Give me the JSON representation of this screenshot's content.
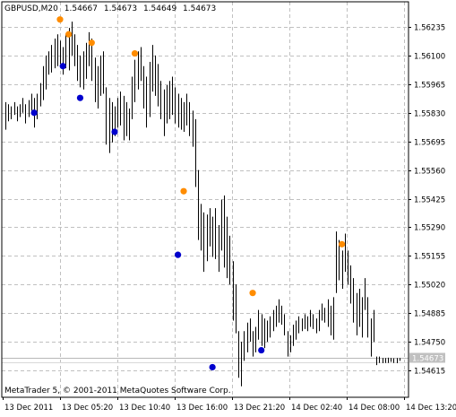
{
  "header": {
    "symbol_timeframe": "GBPUSD,M20",
    "open": "1.54667",
    "high": "1.54673",
    "low": "1.54649",
    "close": "1.54673"
  },
  "footer": {
    "copyright": "MetaTrader 5, © 2001-2011 MetaQuotes Software Corp."
  },
  "colors": {
    "bars": "#000000",
    "grid": "#c0c0c0",
    "up_fractal": "#ff8c00",
    "down_fractal": "#0000cd",
    "current_price_bg": "#c0c0c0"
  },
  "chart_data": {
    "type": "ohlc",
    "title": "GBPUSD,M20",
    "price_axis": {
      "position": "right",
      "min": 1.5454,
      "max": 1.563,
      "ticks": [
        "1.56235",
        "1.56100",
        "1.55965",
        "1.55830",
        "1.55695",
        "1.55560",
        "1.55425",
        "1.55290",
        "1.55155",
        "1.55020",
        "1.54885",
        "1.54750",
        "1.54615"
      ],
      "current_price": "1.54673"
    },
    "time_axis": {
      "ticks": [
        "13 Dec 2011",
        "13 Dec 05:20",
        "13 Dec 10:40",
        "13 Dec 16:00",
        "13 Dec 21:20",
        "14 Dec 02:40",
        "14 Dec 08:00",
        "14 Dec 13:20"
      ]
    },
    "grid": true,
    "bar_count": 138,
    "bars": [
      {
        "h": 1.5588,
        "l": 1.5575
      },
      {
        "h": 1.5587,
        "l": 1.5579
      },
      {
        "h": 1.5586,
        "l": 1.558
      },
      {
        "h": 1.5588,
        "l": 1.5582
      },
      {
        "h": 1.5586,
        "l": 1.5579
      },
      {
        "h": 1.5587,
        "l": 1.5581
      },
      {
        "h": 1.559,
        "l": 1.5583
      },
      {
        "h": 1.5587,
        "l": 1.5578
      },
      {
        "h": 1.5589,
        "l": 1.5581
      },
      {
        "h": 1.5592,
        "l": 1.5584
      },
      {
        "h": 1.559,
        "l": 1.5576
      },
      {
        "h": 1.5592,
        "l": 1.558
      },
      {
        "h": 1.5597,
        "l": 1.5586
      },
      {
        "h": 1.5605,
        "l": 1.5589
      },
      {
        "h": 1.561,
        "l": 1.5594
      },
      {
        "h": 1.5612,
        "l": 1.5601
      },
      {
        "h": 1.5615,
        "l": 1.5602
      },
      {
        "h": 1.5618,
        "l": 1.5604
      },
      {
        "h": 1.562,
        "l": 1.5605
      },
      {
        "h": 1.5617,
        "l": 1.5606
      },
      {
        "h": 1.5614,
        "l": 1.5601
      },
      {
        "h": 1.562,
        "l": 1.5604
      },
      {
        "h": 1.5623,
        "l": 1.5603
      },
      {
        "h": 1.5626,
        "l": 1.561
      },
      {
        "h": 1.562,
        "l": 1.5605
      },
      {
        "h": 1.5615,
        "l": 1.5598
      },
      {
        "h": 1.561,
        "l": 1.5595
      },
      {
        "h": 1.5612,
        "l": 1.5594
      },
      {
        "h": 1.5616,
        "l": 1.5599
      },
      {
        "h": 1.5621,
        "l": 1.5605
      },
      {
        "h": 1.5618,
        "l": 1.5598
      },
      {
        "h": 1.5609,
        "l": 1.5588
      },
      {
        "h": 1.5605,
        "l": 1.5585
      },
      {
        "h": 1.561,
        "l": 1.5591
      },
      {
        "h": 1.5612,
        "l": 1.5592
      },
      {
        "h": 1.5595,
        "l": 1.5568
      },
      {
        "h": 1.559,
        "l": 1.5564
      },
      {
        "h": 1.5588,
        "l": 1.5569
      },
      {
        "h": 1.5586,
        "l": 1.5572
      },
      {
        "h": 1.559,
        "l": 1.5576
      },
      {
        "h": 1.5593,
        "l": 1.5577
      },
      {
        "h": 1.5591,
        "l": 1.557
      },
      {
        "h": 1.5588,
        "l": 1.5572
      },
      {
        "h": 1.5585,
        "l": 1.557
      },
      {
        "h": 1.56,
        "l": 1.558
      },
      {
        "h": 1.5608,
        "l": 1.5588
      },
      {
        "h": 1.5612,
        "l": 1.5594
      },
      {
        "h": 1.5614,
        "l": 1.5598
      },
      {
        "h": 1.5605,
        "l": 1.5585
      },
      {
        "h": 1.56,
        "l": 1.5576
      },
      {
        "h": 1.5607,
        "l": 1.5581
      },
      {
        "h": 1.5615,
        "l": 1.5593
      },
      {
        "h": 1.561,
        "l": 1.5591
      },
      {
        "h": 1.5606,
        "l": 1.5586
      },
      {
        "h": 1.5598,
        "l": 1.558
      },
      {
        "h": 1.5594,
        "l": 1.5572
      },
      {
        "h": 1.5596,
        "l": 1.5578
      },
      {
        "h": 1.5598,
        "l": 1.558
      },
      {
        "h": 1.56,
        "l": 1.5582
      },
      {
        "h": 1.5595,
        "l": 1.5578
      },
      {
        "h": 1.5592,
        "l": 1.5576
      },
      {
        "h": 1.559,
        "l": 1.5575
      },
      {
        "h": 1.5588,
        "l": 1.5574
      },
      {
        "h": 1.5592,
        "l": 1.5577
      },
      {
        "h": 1.5588,
        "l": 1.5572
      },
      {
        "h": 1.5584,
        "l": 1.5567
      },
      {
        "h": 1.558,
        "l": 1.5548
      },
      {
        "h": 1.5556,
        "l": 1.5523
      },
      {
        "h": 1.554,
        "l": 1.5518
      },
      {
        "h": 1.5536,
        "l": 1.5508
      },
      {
        "h": 1.5535,
        "l": 1.5513
      },
      {
        "h": 1.5538,
        "l": 1.552
      },
      {
        "h": 1.5534,
        "l": 1.5515
      },
      {
        "h": 1.5538,
        "l": 1.5514
      },
      {
        "h": 1.553,
        "l": 1.5508
      },
      {
        "h": 1.5542,
        "l": 1.5518
      },
      {
        "h": 1.5544,
        "l": 1.551
      },
      {
        "h": 1.5534,
        "l": 1.5505
      },
      {
        "h": 1.5525,
        "l": 1.5502
      },
      {
        "h": 1.5513,
        "l": 1.5485
      },
      {
        "h": 1.5502,
        "l": 1.5479
      },
      {
        "h": 1.548,
        "l": 1.5458
      },
      {
        "h": 1.5475,
        "l": 1.5454
      },
      {
        "h": 1.548,
        "l": 1.5466
      },
      {
        "h": 1.5484,
        "l": 1.547
      },
      {
        "h": 1.5486,
        "l": 1.5475
      },
      {
        "h": 1.548,
        "l": 1.5468
      },
      {
        "h": 1.5482,
        "l": 1.547
      },
      {
        "h": 1.549,
        "l": 1.5476
      },
      {
        "h": 1.5488,
        "l": 1.5473
      },
      {
        "h": 1.5486,
        "l": 1.5472
      },
      {
        "h": 1.5485,
        "l": 1.5475
      },
      {
        "h": 1.5487,
        "l": 1.5477
      },
      {
        "h": 1.549,
        "l": 1.548
      },
      {
        "h": 1.5492,
        "l": 1.5482
      },
      {
        "h": 1.5495,
        "l": 1.5484
      },
      {
        "h": 1.5492,
        "l": 1.5483
      },
      {
        "h": 1.5488,
        "l": 1.5478
      },
      {
        "h": 1.548,
        "l": 1.5468
      },
      {
        "h": 1.5478,
        "l": 1.547
      },
      {
        "h": 1.5483,
        "l": 1.5473
      },
      {
        "h": 1.5485,
        "l": 1.5476
      },
      {
        "h": 1.5487,
        "l": 1.5479
      },
      {
        "h": 1.5486,
        "l": 1.548
      },
      {
        "h": 1.5488,
        "l": 1.5481
      },
      {
        "h": 1.5487,
        "l": 1.548
      },
      {
        "h": 1.549,
        "l": 1.5482
      },
      {
        "h": 1.5488,
        "l": 1.5481
      },
      {
        "h": 1.5486,
        "l": 1.5479
      },
      {
        "h": 1.549,
        "l": 1.548
      },
      {
        "h": 1.5493,
        "l": 1.5485
      },
      {
        "h": 1.5491,
        "l": 1.5484
      },
      {
        "h": 1.5495,
        "l": 1.5482
      },
      {
        "h": 1.5492,
        "l": 1.5478
      },
      {
        "h": 1.5496,
        "l": 1.5476
      },
      {
        "h": 1.5527,
        "l": 1.5498
      },
      {
        "h": 1.5523,
        "l": 1.5504
      },
      {
        "h": 1.5518,
        "l": 1.55
      },
      {
        "h": 1.5526,
        "l": 1.5508
      },
      {
        "h": 1.5518,
        "l": 1.5502
      },
      {
        "h": 1.5511,
        "l": 1.5493
      },
      {
        "h": 1.5505,
        "l": 1.5484
      },
      {
        "h": 1.5498,
        "l": 1.5478
      },
      {
        "h": 1.55,
        "l": 1.5482
      },
      {
        "h": 1.5496,
        "l": 1.5477
      },
      {
        "h": 1.5505,
        "l": 1.549
      },
      {
        "h": 1.5496,
        "l": 1.5477
      },
      {
        "h": 1.5486,
        "l": 1.5468
      },
      {
        "h": 1.549,
        "l": 1.5475
      },
      {
        "h": 1.5468,
        "l": 1.5464
      },
      {
        "h": 1.5468,
        "l": 1.5465
      },
      {
        "h": 1.54673,
        "l": 1.54649
      },
      {
        "h": 1.54673,
        "l": 1.5465
      },
      {
        "h": 1.54675,
        "l": 1.5465
      },
      {
        "h": 1.54673,
        "l": 1.54655
      },
      {
        "h": 1.54672,
        "l": 1.5465
      },
      {
        "h": 1.54673,
        "l": 1.54649
      },
      {
        "h": 1.54673,
        "l": 1.5466
      }
    ],
    "fractals_up": [
      {
        "bar": 19,
        "price": 1.5627
      },
      {
        "bar": 22,
        "price": 1.562
      },
      {
        "bar": 30,
        "price": 1.5616
      },
      {
        "bar": 45,
        "price": 1.5611
      },
      {
        "bar": 62,
        "price": 1.5546
      },
      {
        "bar": 86,
        "price": 1.5498
      },
      {
        "bar": 117,
        "price": 1.5521
      }
    ],
    "fractals_down": [
      {
        "bar": 10,
        "price": 1.5583
      },
      {
        "bar": 20,
        "price": 1.5605
      },
      {
        "bar": 26,
        "price": 1.559
      },
      {
        "bar": 38,
        "price": 1.5574
      },
      {
        "bar": 60,
        "price": 1.5516
      },
      {
        "bar": 72,
        "price": 1.5463
      },
      {
        "bar": 89,
        "price": 1.5471
      }
    ]
  }
}
